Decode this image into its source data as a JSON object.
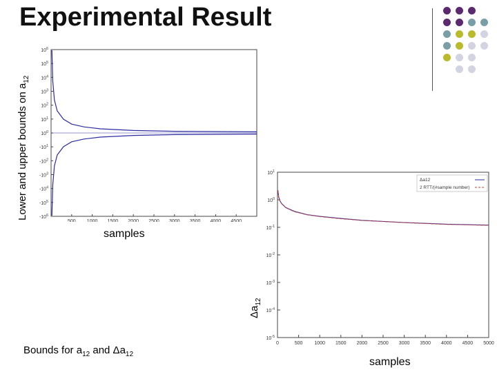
{
  "slide": {
    "title": "Experimental Result",
    "left_ylabel_text": "Lower and upper bounds on a",
    "left_ylabel_sub": "12",
    "left_xlabel": "samples",
    "right_ylabel_prefix": "Δa",
    "right_ylabel_sub": "12",
    "right_xlabel": "samples",
    "caption_part1": "Bounds for a",
    "caption_sub1": "12",
    "caption_part2": " and Δa",
    "caption_sub2": "12"
  },
  "colors": {
    "purple": "#5b2a6e",
    "teal": "#7a9ea6",
    "olive": "#b9bb2c",
    "lavender": "#d3d3e2",
    "curve": "#2b2ba0",
    "curve2": "#c04040"
  },
  "chart_data": [
    {
      "type": "line",
      "title": "",
      "xlabel": "samples",
      "ylabel": "Lower and upper bounds on a12",
      "x_ticks": [
        "500",
        "1000",
        "1500",
        "2000",
        "2500",
        "3000",
        "3500",
        "4000",
        "4500"
      ],
      "xlim": [
        0,
        5000
      ],
      "y_tick_labels": [
        "10^6",
        "10^5",
        "10^4",
        "10^3",
        "10^2",
        "10^1",
        "10^0",
        "-10^1",
        "-10^2",
        "-10^3",
        "-10^4",
        "-10^5",
        "-10^6"
      ],
      "series": [
        {
          "x": [
            20,
            40,
            80,
            150,
            300,
            500,
            800,
            1200,
            2000,
            3000,
            4000,
            5000
          ],
          "values": [
            3.0,
            1.9,
            1.2,
            0.8,
            0.5,
            0.32,
            0.22,
            0.15,
            0.09,
            0.06,
            0.05,
            0.04
          ]
        },
        {
          "x": [
            20,
            40,
            80,
            150,
            300,
            500,
            800,
            1200,
            2000,
            3000,
            4000,
            5000
          ],
          "values": [
            -3.0,
            -1.9,
            -1.2,
            -0.8,
            -0.5,
            -0.32,
            -0.22,
            -0.15,
            -0.09,
            -0.06,
            -0.05,
            -0.04
          ]
        }
      ]
    },
    {
      "type": "line",
      "title": "",
      "xlabel": "samples",
      "ylabel": "Δa12",
      "x_ticks": [
        "0",
        "500",
        "1000",
        "1500",
        "2000",
        "2500",
        "3000",
        "3500",
        "4000",
        "4500",
        "5000"
      ],
      "xlim": [
        0,
        5000
      ],
      "y_ticks": [
        "10^1",
        "10^0",
        "10^-1",
        "10^-2",
        "10^-3",
        "10^-4",
        "10^-5"
      ],
      "legend": {
        "placement": "top-right",
        "entries": [
          "Δa12",
          "2 RTT/(#sample number)"
        ]
      },
      "series": [
        {
          "name": "Δa12",
          "x": [
            10,
            30,
            60,
            100,
            200,
            400,
            700,
            1000,
            1500,
            2000,
            3000,
            4000,
            5000
          ],
          "values": [
            2.2,
            1.25,
            0.9,
            0.72,
            0.52,
            0.38,
            0.29,
            0.25,
            0.21,
            0.18,
            0.15,
            0.13,
            0.12
          ]
        },
        {
          "name": "2 RTT/(#sample number)",
          "x": [
            10,
            30,
            60,
            100,
            200,
            400,
            700,
            1000,
            1500,
            2000,
            3000,
            4000,
            5000
          ],
          "values": [
            2.1,
            1.22,
            0.88,
            0.71,
            0.51,
            0.37,
            0.285,
            0.245,
            0.205,
            0.178,
            0.148,
            0.128,
            0.118
          ]
        }
      ]
    }
  ]
}
